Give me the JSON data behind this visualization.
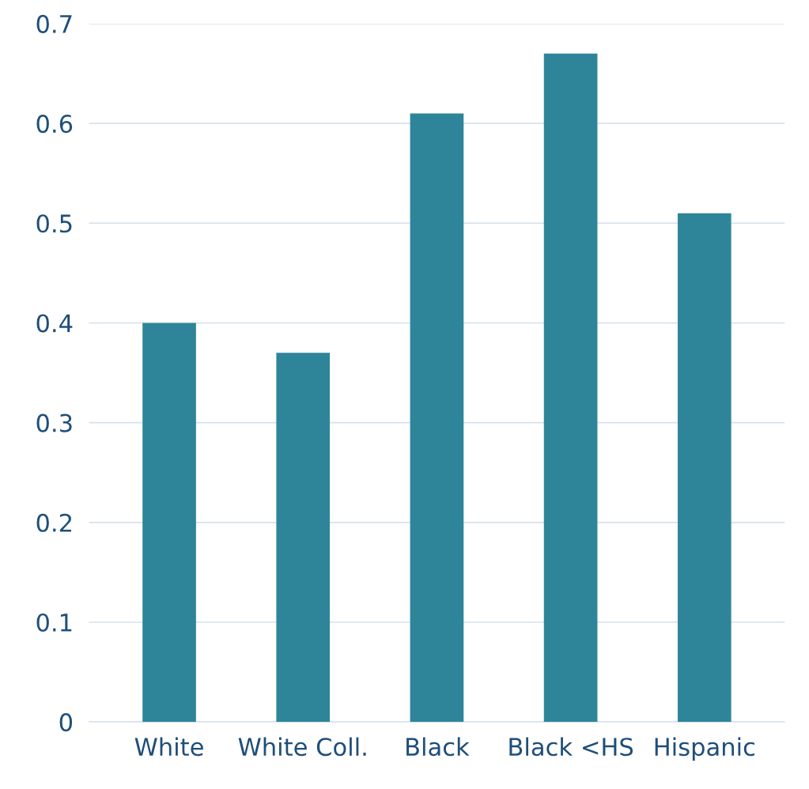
{
  "chart_data": {
    "type": "bar",
    "categories": [
      "White",
      "White Coll.",
      "Black",
      "Black <HS",
      "Hispanic"
    ],
    "values": [
      0.4,
      0.37,
      0.61,
      0.67,
      0.51
    ],
    "color": "#2e8599",
    "ylim": [
      0,
      0.7
    ],
    "yticks": [
      0,
      0.1,
      0.2,
      0.3,
      0.4,
      0.5,
      0.6,
      0.7
    ],
    "grid": "y"
  }
}
